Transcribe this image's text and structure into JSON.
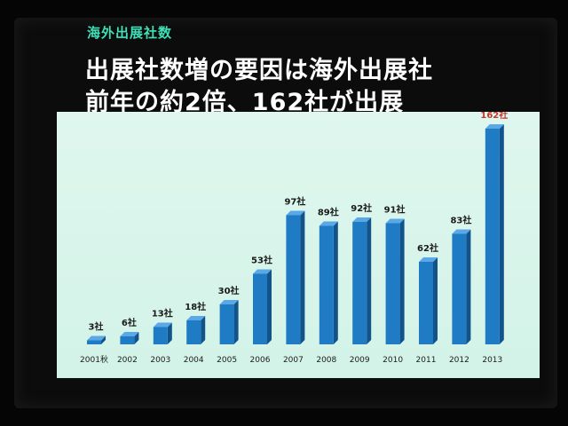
{
  "slide": {
    "subtitle": "海外出展社数",
    "headline_line1": "出展社数増の要因は海外出展社",
    "headline_line2_prefix": "前年の",
    "headline_line2_em1": "約2倍",
    "headline_line2_sep": "、",
    "headline_line2_em2": "162社",
    "headline_line2_suffix": "が出展"
  },
  "chart_data": {
    "type": "bar",
    "title": "",
    "xlabel": "",
    "ylabel": "",
    "categories": [
      "2001秋",
      "2002",
      "2003",
      "2004",
      "2005",
      "2006",
      "2007",
      "2008",
      "2009",
      "2010",
      "2011",
      "2012",
      "2013"
    ],
    "values": [
      3,
      6,
      13,
      18,
      30,
      53,
      97,
      89,
      92,
      91,
      62,
      83,
      162
    ],
    "value_labels": [
      "3社",
      "6社",
      "13社",
      "18社",
      "30社",
      "53社",
      "97社",
      "89社",
      "92社",
      "91社",
      "62社",
      "83社",
      "162社"
    ],
    "ylim": [
      0,
      170
    ],
    "grid": false,
    "legend": "none",
    "colors": {
      "bar_front": "#1f7bc4",
      "bar_side": "#12538a",
      "bar_top": "#5aa8e6",
      "peak_label": "#c0392b"
    }
  }
}
